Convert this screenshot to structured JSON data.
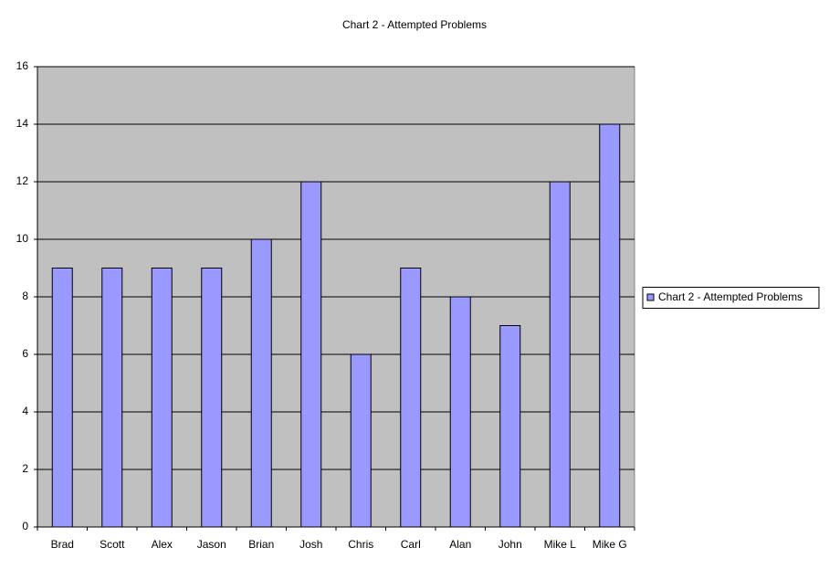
{
  "chart_data": {
    "type": "bar",
    "title": "Chart 2 - Attempted Problems",
    "categories": [
      "Brad",
      "Scott",
      "Alex",
      "Jason",
      "Brian",
      "Josh",
      "Chris",
      "Carl",
      "Alan",
      "John",
      "Mike L",
      "Mike G"
    ],
    "series": [
      {
        "name": "Chart 2 - Attempted Problems",
        "color": "#9999ff",
        "values": [
          9,
          9,
          9,
          9,
          10,
          12,
          6,
          9,
          8,
          7,
          12,
          14
        ]
      }
    ],
    "ylim": [
      0,
      16
    ],
    "yticks": [
      0,
      2,
      4,
      6,
      8,
      10,
      12,
      14,
      16
    ],
    "grid": true,
    "legend": "right"
  }
}
